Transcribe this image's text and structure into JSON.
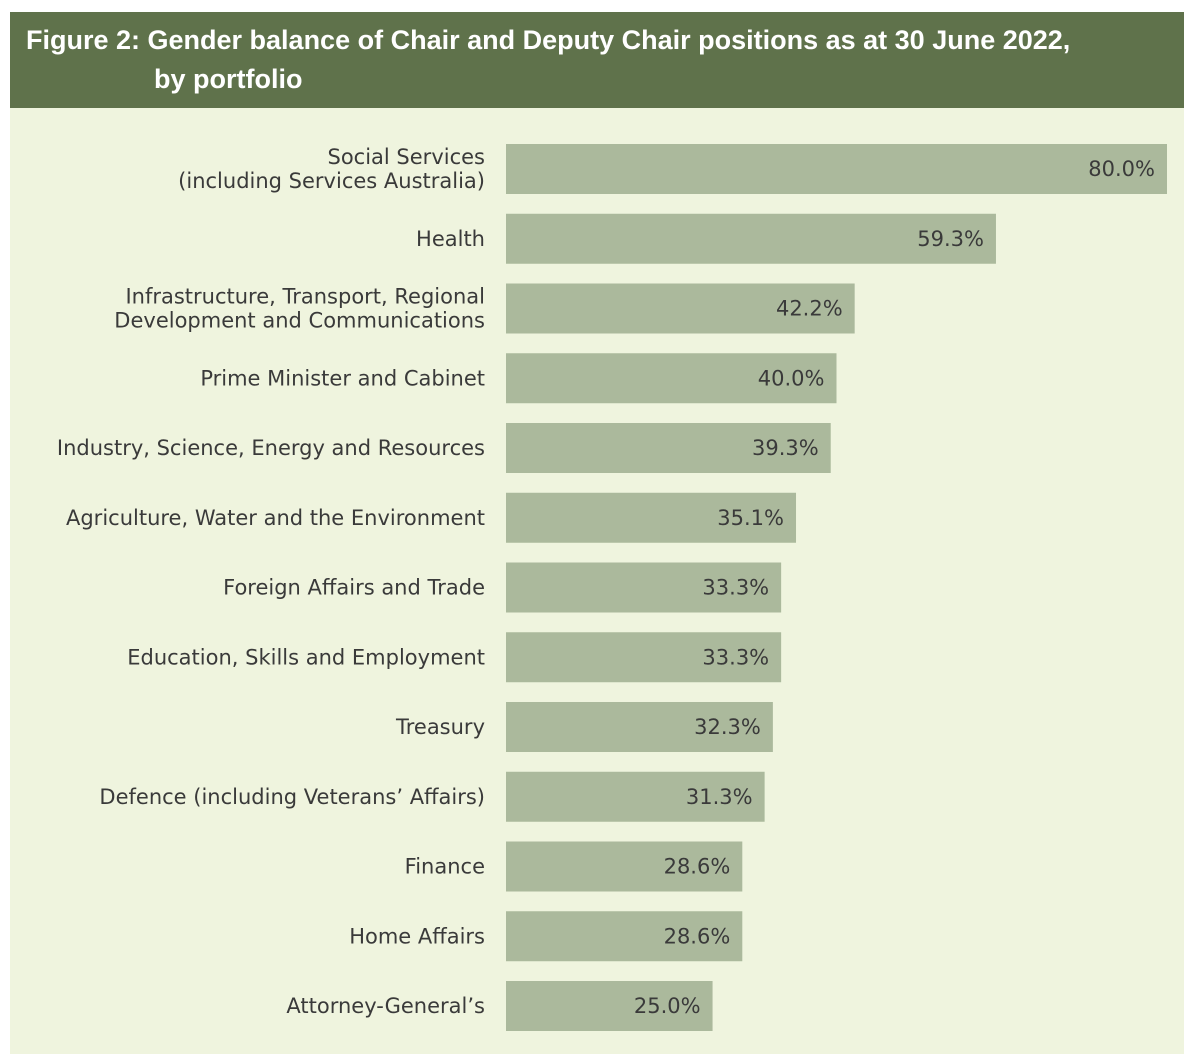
{
  "title": {
    "line1": "Figure 2: Gender balance of Chair and Deputy Chair positions as at 30 June 2022,",
    "line2": "by portfolio"
  },
  "colors": {
    "header": "#5f724b",
    "panel": "#eff4de",
    "bar": "#abb99c",
    "text": "#3a3a3a"
  },
  "chart_data": {
    "type": "bar",
    "orientation": "horizontal",
    "categories": [
      [
        "Social Services",
        "(including Services Australia)"
      ],
      [
        "Health"
      ],
      [
        "Infrastructure, Transport, Regional",
        "Development and Communications"
      ],
      [
        "Prime Minister and Cabinet"
      ],
      [
        "Industry, Science, Energy and Resources"
      ],
      [
        "Agriculture, Water and the Environment"
      ],
      [
        "Foreign Affairs and Trade"
      ],
      [
        "Education, Skills and Employment"
      ],
      [
        "Treasury"
      ],
      [
        "Defence (including Veterans’ Affairs)"
      ],
      [
        "Finance"
      ],
      [
        "Home Affairs"
      ],
      [
        "Attorney-General’s"
      ]
    ],
    "values": [
      80.0,
      59.3,
      42.2,
      40.0,
      39.3,
      35.1,
      33.3,
      33.3,
      32.3,
      31.3,
      28.6,
      28.6,
      25.0
    ],
    "value_labels": [
      "80.0%",
      "59.3%",
      "42.2%",
      "40.0%",
      "39.3%",
      "35.1%",
      "33.3%",
      "33.3%",
      "32.3%",
      "31.3%",
      "28.6%",
      "28.6%",
      "25.0%"
    ],
    "xlim": [
      0,
      80
    ],
    "grid": false,
    "legend": "none"
  }
}
